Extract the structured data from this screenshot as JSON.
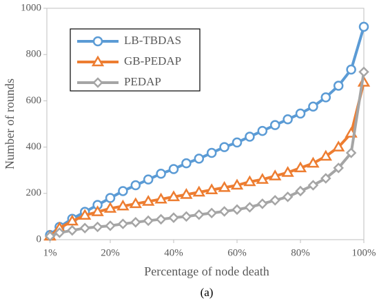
{
  "chart_data": {
    "type": "line",
    "caption": "(a)",
    "x_label": "Percentage of node death",
    "y_label": "Number of rounds",
    "x": [
      1,
      4,
      8,
      12,
      16,
      20,
      24,
      28,
      32,
      36,
      40,
      44,
      48,
      52,
      56,
      60,
      64,
      68,
      72,
      76,
      80,
      84,
      88,
      92,
      96,
      100
    ],
    "series": [
      {
        "name": "LB-TBDAS",
        "color": "#5b9bd5",
        "marker": "circle",
        "values": [
          20,
          55,
          90,
          120,
          150,
          180,
          210,
          235,
          260,
          285,
          305,
          330,
          350,
          375,
          400,
          420,
          445,
          470,
          495,
          520,
          545,
          575,
          615,
          665,
          735,
          920
        ]
      },
      {
        "name": "GB-PEDAP",
        "color": "#ed7d31",
        "marker": "triangle",
        "values": [
          15,
          50,
          80,
          105,
          120,
          135,
          145,
          155,
          165,
          175,
          185,
          195,
          205,
          215,
          225,
          235,
          250,
          260,
          275,
          290,
          310,
          330,
          360,
          400,
          460,
          680
        ]
      },
      {
        "name": "PEDAP",
        "color": "#a5a5a5",
        "marker": "diamond",
        "values": [
          15,
          30,
          40,
          50,
          55,
          60,
          68,
          75,
          82,
          88,
          95,
          100,
          108,
          115,
          122,
          130,
          140,
          155,
          170,
          185,
          210,
          235,
          265,
          310,
          375,
          725
        ]
      }
    ],
    "xlim": [
      0,
      100
    ],
    "xticks": [
      {
        "value": 1,
        "label": "1%"
      },
      {
        "value": 20,
        "label": "20%"
      },
      {
        "value": 40,
        "label": "40%"
      },
      {
        "value": 60,
        "label": "60%"
      },
      {
        "value": 80,
        "label": "80%"
      },
      {
        "value": 100,
        "label": "100%"
      }
    ],
    "ylim": [
      0,
      1000
    ],
    "yticks": [
      0,
      200,
      400,
      600,
      800,
      1000
    ],
    "legend": "upper left"
  }
}
